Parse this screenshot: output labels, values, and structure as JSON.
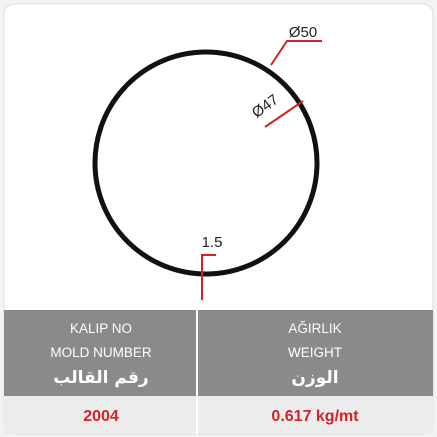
{
  "drawing": {
    "outer_diameter": "Ø50",
    "inner_diameter": "Ø47",
    "thickness": "1.5"
  },
  "table": {
    "headers": [
      [
        "KALIP NO",
        "MOLD NUMBER",
        "رقم القالب"
      ],
      [
        "AĞIRLIK",
        "WEIGHT",
        "الوزن"
      ]
    ],
    "rows": [
      [
        "2004",
        "0.617 kg/mt"
      ]
    ]
  }
}
